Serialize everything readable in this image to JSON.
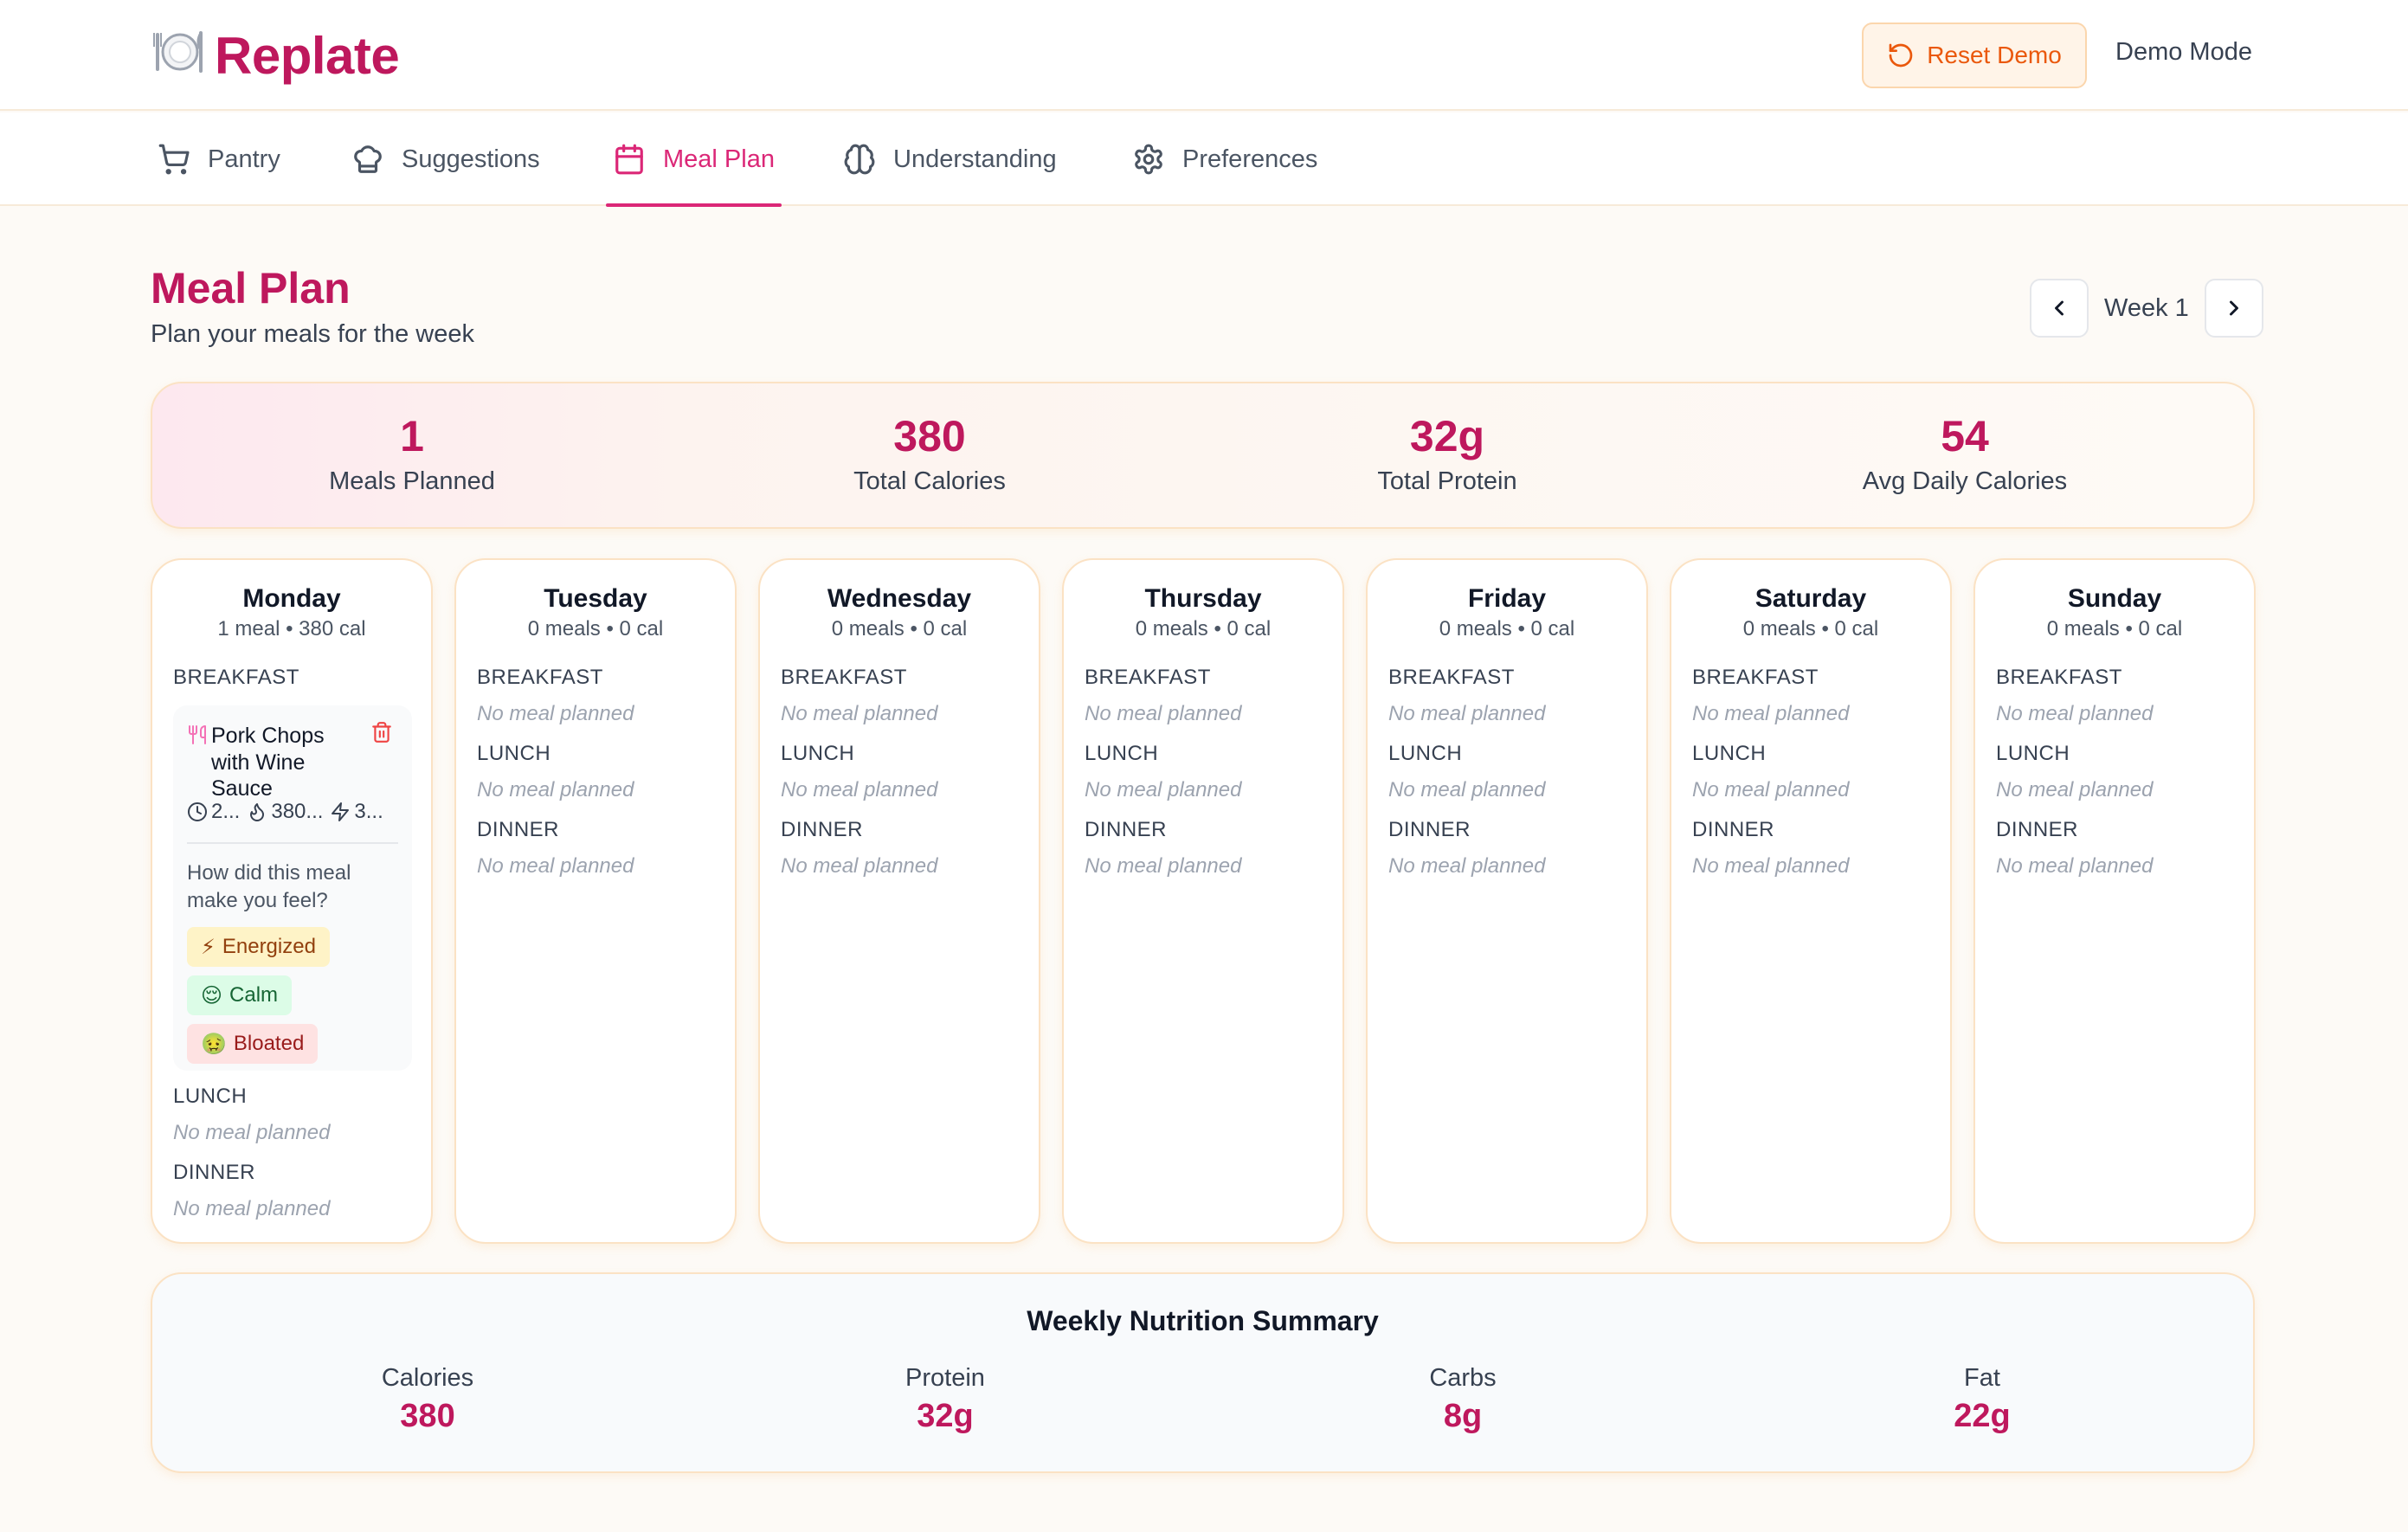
{
  "app": {
    "name": "Replate",
    "logo_icon": "plate-icon",
    "reset_label": "Reset Demo",
    "mode_label": "Demo Mode"
  },
  "nav": {
    "tabs": [
      {
        "label": "Pantry",
        "icon": "cart-icon"
      },
      {
        "label": "Suggestions",
        "icon": "chef-hat-icon"
      },
      {
        "label": "Meal Plan",
        "icon": "calendar-icon",
        "active": true
      },
      {
        "label": "Understanding",
        "icon": "brain-icon"
      },
      {
        "label": "Preferences",
        "icon": "gear-icon"
      }
    ]
  },
  "page": {
    "title": "Meal Plan",
    "subtitle": "Plan your meals for the week",
    "week_label": "Week 1"
  },
  "stats": [
    {
      "value": "1",
      "label": "Meals Planned"
    },
    {
      "value": "380",
      "label": "Total Calories"
    },
    {
      "value": "32g",
      "label": "Total Protein"
    },
    {
      "value": "54",
      "label": "Avg Daily Calories"
    }
  ],
  "slots": {
    "breakfast": "BREAKFAST",
    "lunch": "LUNCH",
    "dinner": "DINNER",
    "empty": "No meal planned"
  },
  "days": [
    {
      "name": "Monday",
      "summary": "1 meal • 380 cal"
    },
    {
      "name": "Tuesday",
      "summary": "0 meals • 0 cal"
    },
    {
      "name": "Wednesday",
      "summary": "0 meals • 0 cal"
    },
    {
      "name": "Thursday",
      "summary": "0 meals • 0 cal"
    },
    {
      "name": "Friday",
      "summary": "0 meals • 0 cal"
    },
    {
      "name": "Saturday",
      "summary": "0 meals • 0 cal"
    },
    {
      "name": "Sunday",
      "summary": "0 meals • 0 cal"
    }
  ],
  "meal": {
    "name": "Pork Chops with Wine Sauce",
    "time": "2...",
    "calories": "380...",
    "energy": "3...",
    "feel_question": "How did this meal make you feel?",
    "feelings": [
      {
        "label": "Energized",
        "emoji": "⚡",
        "bg": "#fef3c7",
        "fg": "#92400e"
      },
      {
        "label": "Calm",
        "emoji": "😌",
        "bg": "#dcfce7",
        "fg": "#166534"
      },
      {
        "label": "Bloated",
        "emoji": "🤢",
        "bg": "#fee2e2",
        "fg": "#991b1b"
      }
    ]
  },
  "weekly": {
    "title": "Weekly Nutrition Summary",
    "items": [
      {
        "label": "Calories",
        "value": "380"
      },
      {
        "label": "Protein",
        "value": "32g"
      },
      {
        "label": "Carbs",
        "value": "8g"
      },
      {
        "label": "Fat",
        "value": "22g"
      }
    ]
  },
  "colors": {
    "brand": "#be185d",
    "accent": "#db2777",
    "reset": "#ea580c"
  }
}
